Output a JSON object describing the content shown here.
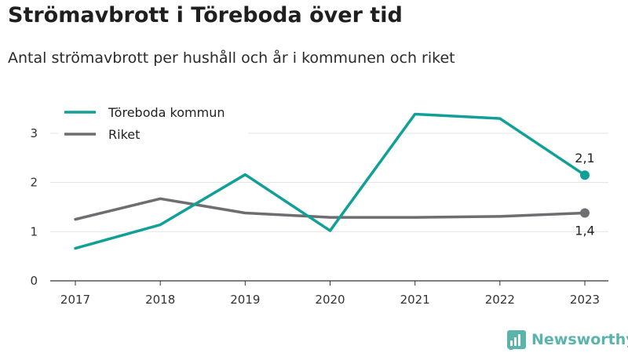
{
  "chart_data": {
    "type": "line",
    "title": "Strömavbrott i Töreboda över tid",
    "subtitle": "Antal strömavbrott per hushåll och år i kommunen och riket",
    "x": [
      "2017",
      "2018",
      "2019",
      "2020",
      "2021",
      "2022",
      "2023"
    ],
    "series": [
      {
        "name": "Töreboda kommun",
        "color": "#11a097",
        "values": [
          0.66,
          1.14,
          2.16,
          1.02,
          3.39,
          3.3,
          2.15
        ],
        "end_label": "2,1"
      },
      {
        "name": "Riket",
        "color": "#6e6e72",
        "values": [
          1.25,
          1.67,
          1.38,
          1.29,
          1.29,
          1.31,
          1.38
        ],
        "end_label": "1,4"
      }
    ],
    "y_ticks": [
      "0",
      "1",
      "2",
      "3"
    ],
    "ylim": [
      0,
      3.5
    ],
    "grid": true,
    "legend_placement": "top-left"
  },
  "branding": {
    "logo_text": "Newsworthy",
    "logo_icon": "bar-chart-badge-icon",
    "color": "#5ab4ac"
  }
}
